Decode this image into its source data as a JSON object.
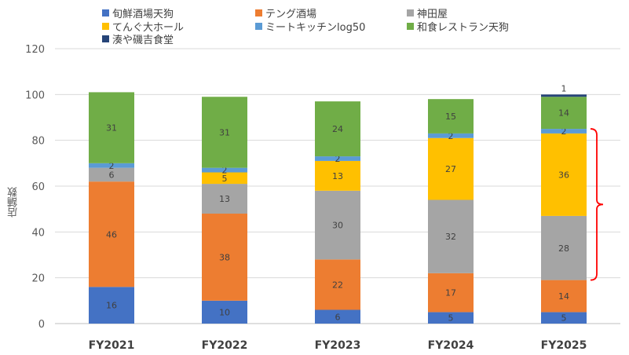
{
  "chart_data": {
    "type": "bar",
    "stacked": true,
    "categories": [
      "FY2021",
      "FY2022",
      "FY2023",
      "FY2024",
      "FY2025"
    ],
    "ylabel": "店舗数",
    "ylim": [
      0,
      120
    ],
    "yticks": [
      0,
      20,
      40,
      60,
      80,
      100,
      120
    ],
    "grid": true,
    "legend_position": "top",
    "series": [
      {
        "name": "旬鮮酒場天狗",
        "color": "#4472C4",
        "values": [
          16,
          10,
          6,
          5,
          5
        ]
      },
      {
        "name": "テング酒場",
        "color": "#ED7D31",
        "values": [
          46,
          38,
          22,
          17,
          14
        ]
      },
      {
        "name": "神田屋",
        "color": "#A5A5A5",
        "values": [
          6,
          13,
          30,
          32,
          28
        ]
      },
      {
        "name": "てんぐ大ホール",
        "color": "#FFC000",
        "values": [
          0,
          5,
          13,
          27,
          36
        ]
      },
      {
        "name": "ミートキッチンlog50",
        "color": "#5B9BD5",
        "values": [
          2,
          2,
          2,
          2,
          2
        ]
      },
      {
        "name": "和食レストラン天狗",
        "color": "#70AD47",
        "values": [
          31,
          31,
          24,
          15,
          14
        ]
      },
      {
        "name": "湊や磯吉食堂",
        "color": "#264478",
        "values": [
          0,
          0,
          0,
          0,
          1
        ]
      }
    ],
    "annotations": [
      {
        "type": "bracket",
        "color": "#FF0000",
        "category": "FY2025",
        "from": 19,
        "to": 85
      }
    ]
  }
}
